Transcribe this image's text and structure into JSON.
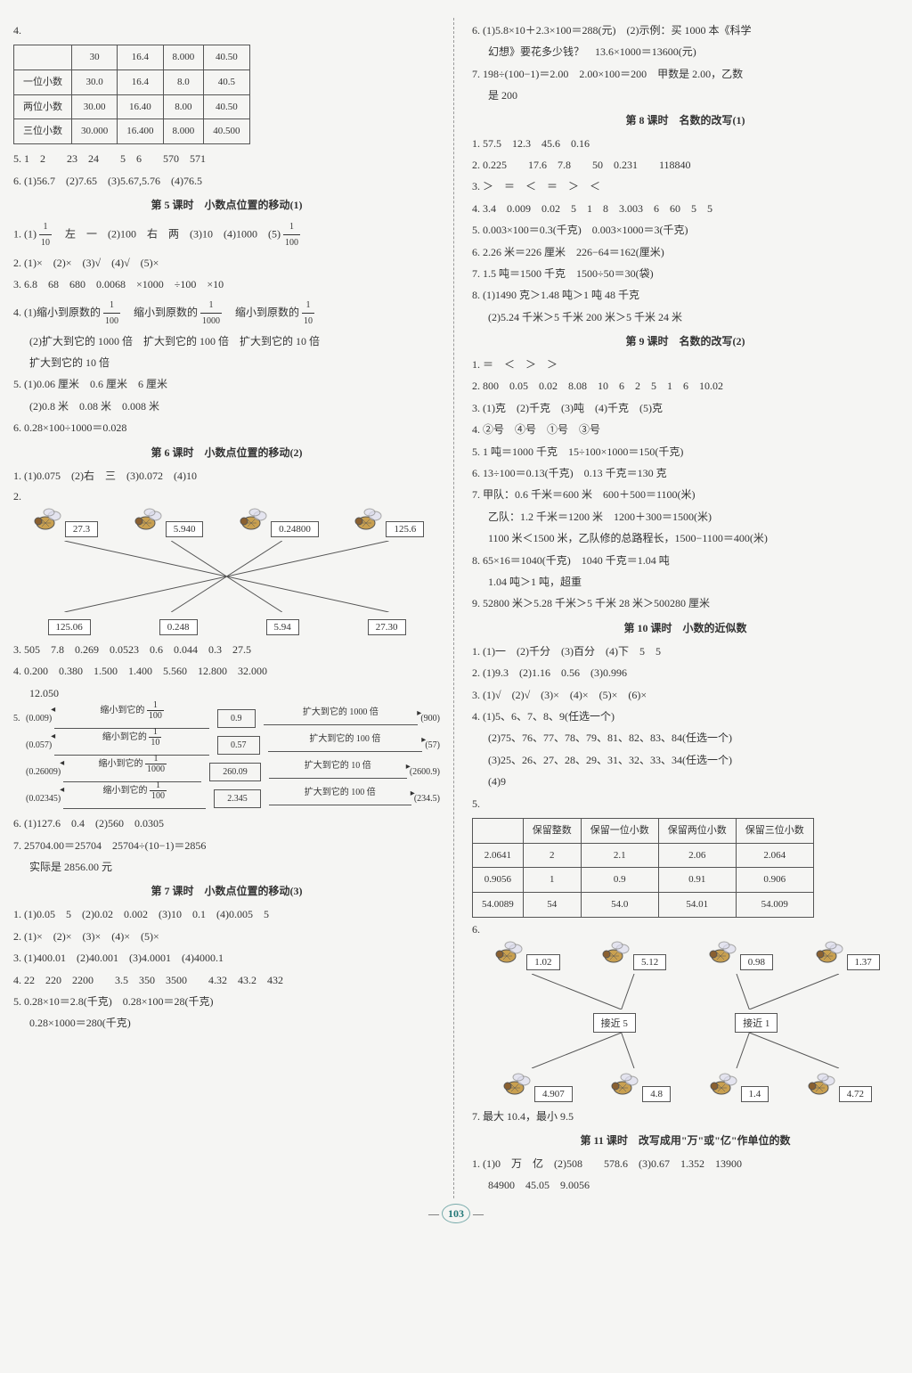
{
  "pageNum": "103",
  "left": {
    "q4": {
      "n": "4.",
      "headers": [
        "",
        "30",
        "16.4",
        "8.000",
        "40.50"
      ],
      "rows": [
        [
          "一位小数",
          "30.0",
          "16.4",
          "8.0",
          "40.5"
        ],
        [
          "两位小数",
          "30.00",
          "16.40",
          "8.00",
          "40.50"
        ],
        [
          "三位小数",
          "30.000",
          "16.400",
          "8.000",
          "40.500"
        ]
      ]
    },
    "q5": "5. 1　2　　23　24　　5　6　　570　571",
    "q6": "6. (1)56.7　(2)7.65　(3)5.67,5.76　(4)76.5",
    "sec5title": "第 5 课时　小数点位置的移动(1)",
    "s5q1a": "1. (1)",
    "s5q1b": "　左　一　(2)100　右　两　(3)10　(4)1000　(5)",
    "s5q2": "2. (1)×　(2)×　(3)√　(4)√　(5)×",
    "s5q3": "3. 6.8　68　680　0.0068　×1000　÷100　×10",
    "s5q4a": "4. (1)缩小到原数的",
    "s5q4b": "　缩小到原数的",
    "s5q4c": "　缩小到原数的",
    "s5q4d": "(2)扩大到它的 1000 倍　扩大到它的 100 倍　扩大到它的 10 倍",
    "s5q4e": "扩大到它的 10 倍",
    "s5q5a": "5. (1)0.06 厘米　0.6 厘米　6 厘米",
    "s5q5b": "(2)0.8 米　0.08 米　0.008 米",
    "s5q6": "6. 0.28×100÷1000＝0.028",
    "sec6title": "第 6 课时　小数点位置的移动(2)",
    "s6q1": "1. (1)0.075　(2)右　三　(3)0.072　(4)10",
    "s6q2n": "2.",
    "s6q2top": [
      "27.3",
      "5.940",
      "0.24800",
      "125.6"
    ],
    "s6q2bot": [
      "125.06",
      "0.248",
      "5.94",
      "27.30"
    ],
    "s6q3": "3. 505　7.8　0.269　0.0523　0.6　0.044　0.3　27.5",
    "s6q4a": "4. 0.200　0.380　1.500　1.400　5.560　12.800　32.000",
    "s6q4b": "12.050",
    "s6q5": {
      "rows": [
        {
          "n": "5.",
          "left": "(0.009)",
          "labL": "缩小到它的",
          "fracD": "100",
          "mid": "0.9",
          "labR": "扩大到它的 1000 倍",
          "right": "(900)"
        },
        {
          "n": "",
          "left": "(0.057)",
          "labL": "缩小到它的",
          "fracD": "10",
          "mid": "0.57",
          "labR": "扩大到它的 100 倍",
          "right": "(57)"
        },
        {
          "n": "",
          "left": "(0.26009)",
          "labL": "缩小到它的",
          "fracD": "1000",
          "mid": "260.09",
          "labR": "扩大到它的 10 倍",
          "right": "(2600.9)"
        },
        {
          "n": "",
          "left": "(0.02345)",
          "labL": "缩小到它的",
          "fracD": "100",
          "mid": "2.345",
          "labR": "扩大到它的 100 倍",
          "right": "(234.5)"
        }
      ]
    },
    "s6q6": "6. (1)127.6　0.4　(2)560　0.0305",
    "s6q7a": "7. 25704.00＝25704　25704÷(10−1)＝2856",
    "s6q7b": "实际是 2856.00 元",
    "sec7title": "第 7 课时　小数点位置的移动(3)",
    "s7q1": "1. (1)0.05　5　(2)0.02　0.002　(3)10　0.1　(4)0.005　5",
    "s7q2": "2. (1)×　(2)×　(3)×　(4)×　(5)×",
    "s7q3": "3. (1)400.01　(2)40.001　(3)4.0001　(4)4000.1",
    "s7q4": "4. 22　220　2200　　3.5　350　3500　　4.32　43.2　432",
    "s7q5a": "5. 0.28×10＝2.8(千克)　0.28×100＝28(千克)",
    "s7q5b": "0.28×1000＝280(千克)"
  },
  "right": {
    "r6a": "6. (1)5.8×10＋2.3×100＝288(元)　(2)示例：买 1000 本《科学",
    "r6b": "幻想》要花多少钱？　13.6×1000＝13600(元)",
    "r7a": "7. 198÷(100−1)＝2.00　2.00×100＝200　甲数是 2.00，乙数",
    "r7b": "是 200",
    "sec8title": "第 8 课时　名数的改写(1)",
    "s8q1": "1. 57.5　12.3　45.6　0.16",
    "s8q2": "2. 0.225　　17.6　7.8　　50　0.231　　118840",
    "s8q3": "3. ＞　＝　＜　＝　＞　＜",
    "s8q4": "4. 3.4　0.009　0.02　5　1　8　3.003　6　60　5　5",
    "s8q5": "5. 0.003×100＝0.3(千克)　0.003×1000＝3(千克)",
    "s8q6": "6. 2.26 米＝226 厘米　226−64＝162(厘米)",
    "s8q7": "7. 1.5 吨＝1500 千克　1500÷50＝30(袋)",
    "s8q8a": "8. (1)1490 克＞1.48 吨＞1 吨 48 千克",
    "s8q8b": "(2)5.24 千米＞5 千米 200 米＞5 千米 24 米",
    "sec9title": "第 9 课时　名数的改写(2)",
    "s9q1": "1. ＝　＜　＞　＞",
    "s9q2": "2. 800　0.05　0.02　8.08　10　6　2　5　1　6　10.02",
    "s9q3": "3. (1)克　(2)千克　(3)吨　(4)千克　(5)克",
    "s9q4": "4. ②号　④号　①号　③号",
    "s9q5": "5. 1 吨＝1000 千克　15÷100×1000＝150(千克)",
    "s9q6": "6. 13÷100＝0.13(千克)　0.13 千克＝130 克",
    "s9q7a": "7. 甲队：0.6 千米＝600 米　600＋500＝1100(米)",
    "s9q7b": "乙队：1.2 千米＝1200 米　1200＋300＝1500(米)",
    "s9q7c": "1100 米＜1500 米，乙队修的总路程长，1500−1100＝400(米)",
    "s9q8a": "8. 65×16＝1040(千克)　1040 千克＝1.04 吨",
    "s9q8b": "1.04 吨＞1 吨，超重",
    "s9q9": "9. 52800 米＞5.28 千米＞5 千米 28 米＞500280 厘米",
    "sec10title": "第 10 课时　小数的近似数",
    "s10q1": "1. (1)一　(2)千分　(3)百分　(4)下　5　5",
    "s10q2": "2. (1)9.3　(2)1.16　0.56　(3)0.996",
    "s10q3": "3. (1)√　(2)√　(3)×　(4)×　(5)×　(6)×",
    "s10q4a": "4. (1)5、6、7、8、9(任选一个)",
    "s10q4b": "(2)75、76、77、78、79、81、82、83、84(任选一个)",
    "s10q4c": "(3)25、26、27、28、29、31、32、33、34(任选一个)",
    "s10q4d": "(4)9",
    "s10q5": {
      "n": "5.",
      "headers": [
        "",
        "保留整数",
        "保留一位小数",
        "保留两位小数",
        "保留三位小数"
      ],
      "rows": [
        [
          "2.0641",
          "2",
          "2.1",
          "2.06",
          "2.064"
        ],
        [
          "0.9056",
          "1",
          "0.9",
          "0.91",
          "0.906"
        ],
        [
          "54.0089",
          "54",
          "54.0",
          "54.01",
          "54.009"
        ]
      ]
    },
    "s10q6": {
      "n": "6.",
      "top": [
        "1.02",
        "5.12",
        "0.98",
        "1.37"
      ],
      "mid": [
        "接近 5",
        "接近 1"
      ],
      "bot": [
        "4.907",
        "4.8",
        "1.4",
        "4.72"
      ]
    },
    "s10q7": "7. 最大 10.4，最小 9.5",
    "sec11title": "第 11 课时　改写成用\"万\"或\"亿\"作单位的数",
    "s11q1a": "1. (1)0　万　亿　(2)508　　578.6　(3)0.67　1.352　13900",
    "s11q1b": "84900　45.05　9.0056"
  }
}
